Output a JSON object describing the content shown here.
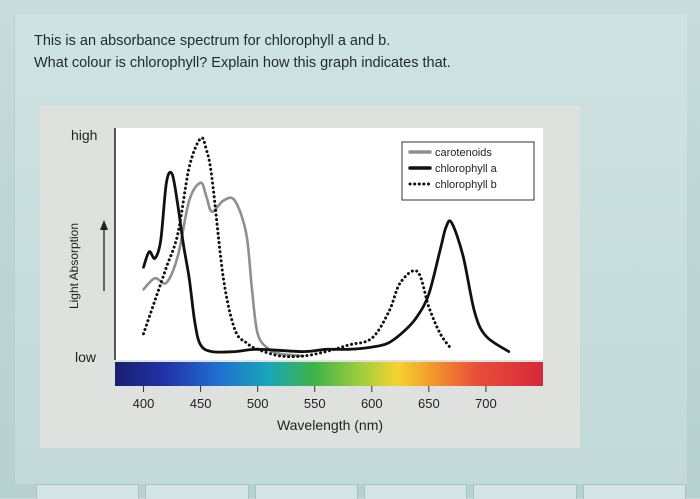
{
  "question": {
    "line1": "This is an absorbance spectrum for chlorophyll a and b.",
    "line2": "What colour is chlorophyll? Explain how this graph indicates that."
  },
  "chart_data": {
    "type": "line",
    "xlabel": "Wavelength (nm)",
    "ylabel": "Light Absorption",
    "y_high_label": "high",
    "y_low_label": "low",
    "xlim": [
      375,
      750
    ],
    "ylim": [
      0,
      1
    ],
    "xticks": [
      400,
      450,
      500,
      550,
      600,
      650,
      700
    ],
    "legend": {
      "position": "top-right",
      "entries": [
        {
          "label": "carotenoids",
          "style": "solid",
          "color": "#8f8f8f"
        },
        {
          "label": "chlorophyll a",
          "style": "solid",
          "color": "#111111"
        },
        {
          "label": "chlorophyll b",
          "style": "dotted",
          "color": "#111111"
        }
      ]
    },
    "series": [
      {
        "name": "carotenoids",
        "x": [
          400,
          410,
          420,
          430,
          440,
          450,
          455,
          460,
          470,
          480,
          490,
          495,
          500,
          510,
          520,
          540
        ],
        "y": [
          0.3,
          0.35,
          0.33,
          0.45,
          0.7,
          0.78,
          0.72,
          0.65,
          0.7,
          0.7,
          0.55,
          0.3,
          0.1,
          0.03,
          0.01,
          0.0
        ]
      },
      {
        "name": "chlorophyll a",
        "x": [
          400,
          405,
          410,
          415,
          420,
          425,
          430,
          435,
          440,
          445,
          450,
          460,
          480,
          500,
          540,
          560,
          580,
          600,
          615,
          630,
          640,
          650,
          660,
          665,
          670,
          680,
          690,
          700,
          720
        ],
        "y": [
          0.4,
          0.47,
          0.44,
          0.52,
          0.78,
          0.82,
          0.68,
          0.5,
          0.35,
          0.15,
          0.05,
          0.02,
          0.02,
          0.03,
          0.02,
          0.03,
          0.03,
          0.04,
          0.06,
          0.12,
          0.18,
          0.28,
          0.48,
          0.58,
          0.6,
          0.45,
          0.2,
          0.09,
          0.02
        ]
      },
      {
        "name": "chlorophyll b",
        "x": [
          400,
          410,
          420,
          430,
          440,
          450,
          455,
          460,
          470,
          480,
          490,
          500,
          520,
          540,
          560,
          580,
          600,
          615,
          625,
          640,
          650,
          660,
          670
        ],
        "y": [
          0.1,
          0.25,
          0.4,
          0.55,
          0.85,
          0.98,
          0.93,
          0.8,
          0.35,
          0.12,
          0.06,
          0.03,
          0.0,
          0.0,
          0.02,
          0.05,
          0.08,
          0.2,
          0.33,
          0.38,
          0.22,
          0.1,
          0.03
        ]
      }
    ]
  }
}
